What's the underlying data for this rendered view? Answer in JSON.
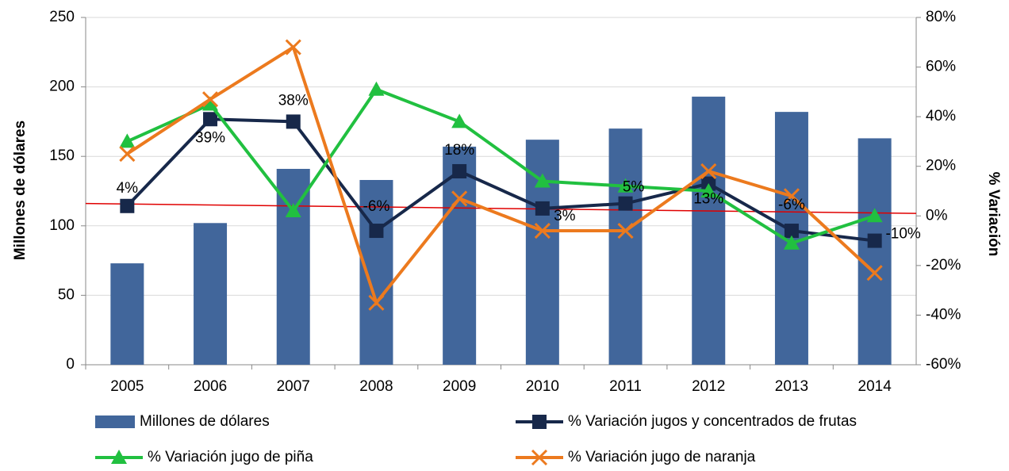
{
  "chart_data": {
    "type": "bar-line",
    "categories": [
      "2005",
      "2006",
      "2007",
      "2008",
      "2009",
      "2010",
      "2011",
      "2012",
      "2013",
      "2014"
    ],
    "ylabel": "Millones de dólares",
    "y2label": "% Variación",
    "ylim": [
      0,
      250
    ],
    "yticks": [
      0,
      50,
      100,
      150,
      200,
      250
    ],
    "y2lim": [
      -60,
      80
    ],
    "y2ticks": [
      {
        "value": -60,
        "label": "-60%"
      },
      {
        "value": -40,
        "label": "-40%"
      },
      {
        "value": -20,
        "label": "-20%"
      },
      {
        "value": 0,
        "label": "0%"
      },
      {
        "value": 20,
        "label": "20%"
      },
      {
        "value": 40,
        "label": "40%"
      },
      {
        "value": 60,
        "label": "60%"
      },
      {
        "value": 80,
        "label": "80%"
      }
    ],
    "grid": true,
    "legend": "bottom",
    "series": [
      {
        "name": "Millones de dólares",
        "type": "bar",
        "color": "#41669b",
        "values": [
          73,
          102,
          141,
          133,
          157,
          162,
          170,
          193,
          182,
          163
        ]
      },
      {
        "name": "% Variación jugos y concentrados de frutas",
        "type": "line",
        "marker": "square",
        "axis": "y2",
        "color": "#17284a",
        "values": [
          4,
          39,
          38,
          -6,
          18,
          3,
          5,
          13,
          -6,
          -10
        ],
        "value_labels": [
          "4%",
          "39%",
          "38%",
          "-6%",
          "18%",
          "3%",
          "5%",
          "13%",
          "-6%",
          "-10%"
        ]
      },
      {
        "name": "% Variación jugo de piña",
        "type": "line",
        "marker": "triangle",
        "axis": "y2",
        "color": "#21c040",
        "values": [
          30,
          45,
          2,
          51,
          38,
          14,
          12,
          10,
          -11,
          0
        ]
      },
      {
        "name": "% Variación jugo de naranja",
        "type": "line",
        "marker": "x",
        "axis": "y2",
        "color": "#ec7a1e",
        "values": [
          25,
          47,
          68,
          -35,
          7,
          -6,
          -6,
          18,
          8,
          -23
        ]
      }
    ],
    "trend_line": {
      "axis": "y2",
      "color": "#e00000",
      "values": [
        5,
        1
      ]
    }
  }
}
